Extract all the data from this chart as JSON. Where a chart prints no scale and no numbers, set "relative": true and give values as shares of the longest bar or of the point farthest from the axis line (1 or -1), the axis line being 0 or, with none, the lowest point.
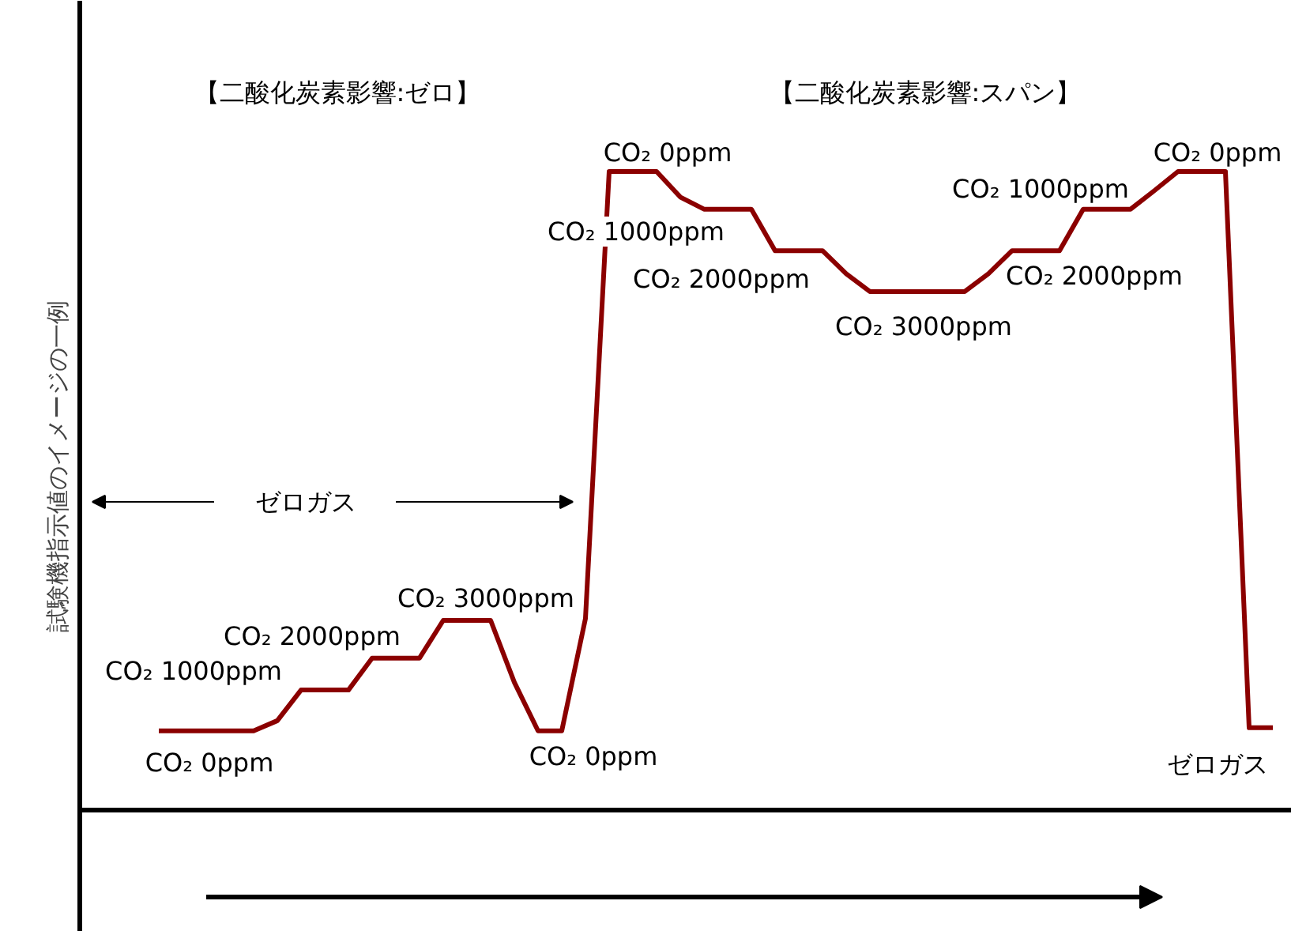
{
  "chart_data": {
    "type": "line",
    "relative": true,
    "ylabel": "試験機指示値のイメージの一例",
    "categories": [
      null,
      null,
      null,
      null,
      null,
      null,
      null,
      null,
      null,
      null,
      null,
      null,
      null,
      null,
      null,
      null,
      null,
      null,
      null,
      null,
      null,
      null,
      null,
      null,
      null,
      null,
      null,
      null,
      null,
      null,
      null,
      null,
      null,
      null,
      null,
      null,
      null,
      null,
      null,
      null,
      null,
      null,
      null,
      null,
      null,
      null,
      null,
      null
    ],
    "series": [
      {
        "color": "#8b0000",
        "values": [
          0.124,
          0.124,
          0.124,
          0.124,
          0.124,
          0.14,
          0.188,
          0.188,
          0.188,
          0.238,
          0.238,
          0.238,
          0.297,
          0.297,
          0.297,
          0.2,
          0.124,
          0.124,
          0.3,
          1.0,
          1.0,
          1.0,
          0.96,
          0.941,
          0.941,
          0.941,
          0.876,
          0.876,
          0.876,
          0.84,
          0.812,
          0.812,
          0.812,
          0.812,
          0.812,
          0.84,
          0.876,
          0.876,
          0.876,
          0.941,
          0.941,
          0.941,
          0.97,
          1.0,
          1.0,
          1.0,
          0.129,
          0.129
        ]
      }
    ],
    "annotations": [
      "【二酸化炭素影響:ゼロ】",
      "【二酸化炭素影響:スパン】",
      "ゼロガス",
      "ゼロガス",
      "CO₂ 0ppm",
      "CO₂ 1000ppm",
      "CO₂ 2000ppm",
      "CO₂ 3000ppm",
      "CO₂ 0ppm",
      "CO₂ 0ppm",
      "CO₂ 1000ppm",
      "CO₂ 2000ppm",
      "CO₂ 3000ppm",
      "CO₂ 2000ppm",
      "CO₂ 1000ppm",
      "CO₂ 0ppm"
    ],
    "grid": false
  }
}
